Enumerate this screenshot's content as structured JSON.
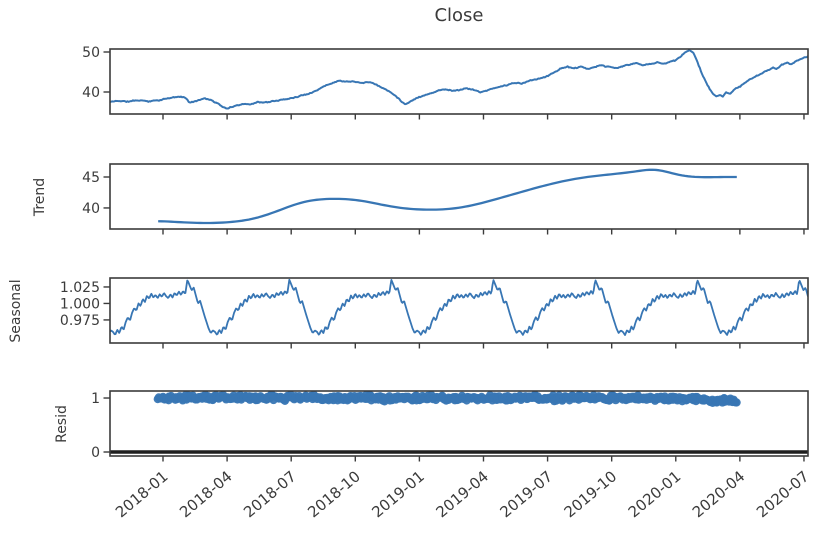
{
  "figure": {
    "title": "Close",
    "background": "#ffffff",
    "line_color": "#3876b4",
    "marker_color": "#3876b4",
    "axis_color": "#3b3b3b",
    "text_color": "#3b3b3b",
    "zero_line_color": "#1f1f1f"
  },
  "x_axis": {
    "tick_labels": [
      "2018-01",
      "2018-04",
      "2018-07",
      "2018-10",
      "2019-01",
      "2019-04",
      "2019-07",
      "2019-10",
      "2020-01",
      "2020-04",
      "2020-07"
    ],
    "first_tick_f": 0.07593,
    "tick_step_f": 0.09183,
    "label_rotation_deg": -40,
    "range_note": "x spans ~2017-10 to ~2020-07, fraction f of axis width"
  },
  "chart_data": [
    {
      "name": "observed",
      "type": "line",
      "title": "Close",
      "ylabel": "",
      "ylim": [
        34.5,
        50.75
      ],
      "yticks": [
        40,
        50
      ],
      "points": [
        [
          0.0,
          37.5
        ],
        [
          0.012,
          37.8
        ],
        [
          0.025,
          37.6
        ],
        [
          0.04,
          37.9
        ],
        [
          0.055,
          37.7
        ],
        [
          0.07,
          38.1
        ],
        [
          0.085,
          38.5
        ],
        [
          0.1,
          38.8
        ],
        [
          0.108,
          38.5
        ],
        [
          0.115,
          37.2
        ],
        [
          0.125,
          37.9
        ],
        [
          0.135,
          38.4
        ],
        [
          0.145,
          38.1
        ],
        [
          0.155,
          37.1
        ],
        [
          0.163,
          36.2
        ],
        [
          0.17,
          35.9
        ],
        [
          0.18,
          36.6
        ],
        [
          0.19,
          37.2
        ],
        [
          0.2,
          37.0
        ],
        [
          0.212,
          37.6
        ],
        [
          0.225,
          37.4
        ],
        [
          0.24,
          37.9
        ],
        [
          0.255,
          38.4
        ],
        [
          0.27,
          39.0
        ],
        [
          0.285,
          39.8
        ],
        [
          0.3,
          41.0
        ],
        [
          0.315,
          42.2
        ],
        [
          0.33,
          43.1
        ],
        [
          0.34,
          42.8
        ],
        [
          0.35,
          43.0
        ],
        [
          0.36,
          42.5
        ],
        [
          0.37,
          42.8
        ],
        [
          0.38,
          42.1
        ],
        [
          0.39,
          41.2
        ],
        [
          0.4,
          40.2
        ],
        [
          0.408,
          39.2
        ],
        [
          0.415,
          38.2
        ],
        [
          0.423,
          37.0
        ],
        [
          0.43,
          37.8
        ],
        [
          0.44,
          38.7
        ],
        [
          0.45,
          39.3
        ],
        [
          0.46,
          39.9
        ],
        [
          0.47,
          40.4
        ],
        [
          0.48,
          40.8
        ],
        [
          0.49,
          40.4
        ],
        [
          0.5,
          40.6
        ],
        [
          0.51,
          41.1
        ],
        [
          0.52,
          40.7
        ],
        [
          0.53,
          40.0
        ],
        [
          0.54,
          40.4
        ],
        [
          0.55,
          40.9
        ],
        [
          0.56,
          41.3
        ],
        [
          0.57,
          41.8
        ],
        [
          0.58,
          42.3
        ],
        [
          0.59,
          42.0
        ],
        [
          0.6,
          42.6
        ],
        [
          0.61,
          43.1
        ],
        [
          0.62,
          43.6
        ],
        [
          0.63,
          44.3
        ],
        [
          0.64,
          45.2
        ],
        [
          0.645,
          45.9
        ],
        [
          0.655,
          46.4
        ],
        [
          0.665,
          45.8
        ],
        [
          0.675,
          46.2
        ],
        [
          0.685,
          45.6
        ],
        [
          0.695,
          46.0
        ],
        [
          0.705,
          46.5
        ],
        [
          0.715,
          46.2
        ],
        [
          0.722,
          45.9
        ],
        [
          0.728,
          45.9
        ],
        [
          0.735,
          46.4
        ],
        [
          0.745,
          46.8
        ],
        [
          0.755,
          47.2
        ],
        [
          0.765,
          46.6
        ],
        [
          0.775,
          47.0
        ],
        [
          0.785,
          47.4
        ],
        [
          0.795,
          47.2
        ],
        [
          0.805,
          47.7
        ],
        [
          0.812,
          48.2
        ],
        [
          0.818,
          49.0
        ],
        [
          0.824,
          49.9
        ],
        [
          0.83,
          50.5
        ],
        [
          0.836,
          49.7
        ],
        [
          0.84,
          48.2
        ],
        [
          0.845,
          46.2
        ],
        [
          0.85,
          44.0
        ],
        [
          0.856,
          41.8
        ],
        [
          0.862,
          39.9
        ],
        [
          0.868,
          39.0
        ],
        [
          0.874,
          39.4
        ],
        [
          0.878,
          38.8
        ],
        [
          0.883,
          39.9
        ],
        [
          0.888,
          39.4
        ],
        [
          0.894,
          40.5
        ],
        [
          0.902,
          41.3
        ],
        [
          0.912,
          42.4
        ],
        [
          0.922,
          43.4
        ],
        [
          0.932,
          44.4
        ],
        [
          0.942,
          45.4
        ],
        [
          0.95,
          46.0
        ],
        [
          0.955,
          45.5
        ],
        [
          0.962,
          46.6
        ],
        [
          0.97,
          47.2
        ],
        [
          0.976,
          46.8
        ],
        [
          0.984,
          48.0
        ],
        [
          0.992,
          48.4
        ],
        [
          1.0,
          48.8
        ]
      ]
    },
    {
      "name": "trend",
      "type": "line",
      "ylabel": "Trend",
      "ylim": [
        36.6,
        47.1
      ],
      "yticks": [
        40,
        45
      ],
      "x_range": [
        0.069,
        0.898
      ],
      "points": [
        [
          0.069,
          37.9
        ],
        [
          0.1,
          37.7
        ],
        [
          0.13,
          37.55
        ],
        [
          0.16,
          37.6
        ],
        [
          0.19,
          37.9
        ],
        [
          0.215,
          38.5
        ],
        [
          0.24,
          39.5
        ],
        [
          0.265,
          40.6
        ],
        [
          0.29,
          41.3
        ],
        [
          0.315,
          41.5
        ],
        [
          0.34,
          41.45
        ],
        [
          0.365,
          41.1
        ],
        [
          0.39,
          40.5
        ],
        [
          0.415,
          40.0
        ],
        [
          0.44,
          39.75
        ],
        [
          0.465,
          39.7
        ],
        [
          0.49,
          39.85
        ],
        [
          0.515,
          40.3
        ],
        [
          0.54,
          41.0
        ],
        [
          0.565,
          41.8
        ],
        [
          0.59,
          42.6
        ],
        [
          0.615,
          43.4
        ],
        [
          0.64,
          44.1
        ],
        [
          0.665,
          44.7
        ],
        [
          0.69,
          45.1
        ],
        [
          0.715,
          45.4
        ],
        [
          0.74,
          45.7
        ],
        [
          0.76,
          46.0
        ],
        [
          0.775,
          46.3
        ],
        [
          0.79,
          46.1
        ],
        [
          0.805,
          45.6
        ],
        [
          0.82,
          45.2
        ],
        [
          0.835,
          45.0
        ],
        [
          0.855,
          44.95
        ],
        [
          0.875,
          45.0
        ],
        [
          0.898,
          45.0
        ]
      ]
    },
    {
      "name": "seasonal",
      "type": "line",
      "ylabel": "Seasonal",
      "ylim": [
        0.94,
        1.0386
      ],
      "yticks": [
        0.975,
        1.0,
        1.025
      ],
      "ytick_labels": [
        "0.975",
        "1.000",
        "1.025"
      ],
      "cycle_start_f": 0.0043,
      "cycle_period_f": 0.1461,
      "cycle_template": [
        0.957,
        0.952,
        0.96,
        0.955,
        0.965,
        0.96,
        0.972,
        0.979,
        0.974,
        0.986,
        0.993,
        0.989,
        1.0,
        0.996,
        1.007,
        1.002,
        1.012,
        1.007,
        1.015,
        1.009,
        1.013,
        1.008,
        1.014,
        1.01,
        1.016,
        1.011,
        1.008,
        1.014,
        1.009,
        1.016,
        1.012,
        1.018,
        1.013,
        1.019,
        1.014,
        1.036,
        1.028,
        1.02,
        1.024,
        1.012,
        1.0,
        1.004,
        0.993,
        0.982,
        0.972,
        0.962,
        0.955,
        0.959
      ]
    },
    {
      "name": "resid",
      "type": "scatter",
      "ylabel": "Resid",
      "ylim": [
        -0.074,
        1.13
      ],
      "yticks": [
        0,
        1
      ],
      "ytick_labels": [
        "0",
        "1"
      ],
      "x_range": [
        0.069,
        0.898
      ],
      "zero_line": 0,
      "n_points": 560,
      "spread": 0.045,
      "mean_points": [
        [
          0.069,
          1.0
        ],
        [
          0.2,
          1.003
        ],
        [
          0.3,
          1.005
        ],
        [
          0.4,
          0.999
        ],
        [
          0.5,
          0.997
        ],
        [
          0.6,
          1.0
        ],
        [
          0.7,
          1.002
        ],
        [
          0.78,
          1.0
        ],
        [
          0.83,
          0.996
        ],
        [
          0.85,
          0.975
        ],
        [
          0.862,
          0.955
        ],
        [
          0.875,
          0.945
        ],
        [
          0.885,
          0.952
        ],
        [
          0.898,
          0.965
        ]
      ]
    }
  ],
  "render": {
    "noise_seed": 11,
    "close_samples": 640,
    "close_jitter": 0.18,
    "close_walk": 0.15,
    "seasonal_samples": 760
  }
}
